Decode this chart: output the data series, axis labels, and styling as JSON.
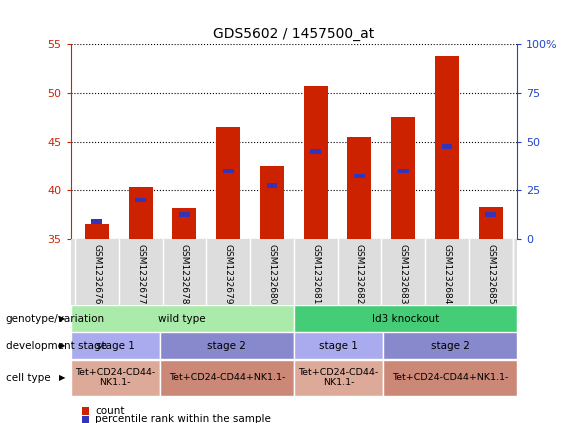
{
  "title": "GDS5602 / 1457500_at",
  "samples": [
    "GSM1232676",
    "GSM1232677",
    "GSM1232678",
    "GSM1232679",
    "GSM1232680",
    "GSM1232681",
    "GSM1232682",
    "GSM1232683",
    "GSM1232684",
    "GSM1232685"
  ],
  "count_values": [
    36.5,
    40.3,
    38.2,
    46.5,
    42.5,
    50.7,
    45.5,
    47.5,
    53.8,
    38.3
  ],
  "percentile_values": [
    36.8,
    39.0,
    37.5,
    42.0,
    40.5,
    44.0,
    41.5,
    42.0,
    44.5,
    37.5
  ],
  "bar_bottom": 35.0,
  "ylim_left": [
    35,
    55
  ],
  "ylim_right": [
    0,
    100
  ],
  "yticks_left": [
    35,
    40,
    45,
    50,
    55
  ],
  "yticks_right": [
    0,
    25,
    50,
    75,
    100
  ],
  "right_tick_labels": [
    "0",
    "25",
    "50",
    "75",
    "100%"
  ],
  "bar_color": "#cc2200",
  "percentile_color": "#3333bb",
  "bar_width": 0.55,
  "genotype_groups": [
    {
      "label": "wild type",
      "start": 0,
      "end": 5,
      "color": "#aaeaaa"
    },
    {
      "label": "Id3 knockout",
      "start": 5,
      "end": 10,
      "color": "#44cc77"
    }
  ],
  "stage_groups": [
    {
      "label": "stage 1",
      "start": 0,
      "end": 2,
      "color": "#aaaaee"
    },
    {
      "label": "stage 2",
      "start": 2,
      "end": 5,
      "color": "#8888cc"
    },
    {
      "label": "stage 1",
      "start": 5,
      "end": 7,
      "color": "#aaaaee"
    },
    {
      "label": "stage 2",
      "start": 7,
      "end": 10,
      "color": "#8888cc"
    }
  ],
  "celltype_groups": [
    {
      "label": "Tet+CD24-CD44-\nNK1.1-",
      "start": 0,
      "end": 2,
      "color": "#ddaa99"
    },
    {
      "label": "Tet+CD24-CD44+NK1.1-",
      "start": 2,
      "end": 5,
      "color": "#cc8877"
    },
    {
      "label": "Tet+CD24-CD44-\nNK1.1-",
      "start": 5,
      "end": 7,
      "color": "#ddaa99"
    },
    {
      "label": "Tet+CD24-CD44+NK1.1-",
      "start": 7,
      "end": 10,
      "color": "#cc8877"
    }
  ],
  "row_labels": [
    "genotype/variation",
    "development stage",
    "cell type"
  ],
  "legend_items": [
    {
      "label": "count",
      "color": "#cc2200"
    },
    {
      "label": "percentile rank within the sample",
      "color": "#3333bb"
    }
  ],
  "background_color": "#ffffff",
  "axis_color_left": "#cc2200",
  "axis_color_right": "#2244cc"
}
